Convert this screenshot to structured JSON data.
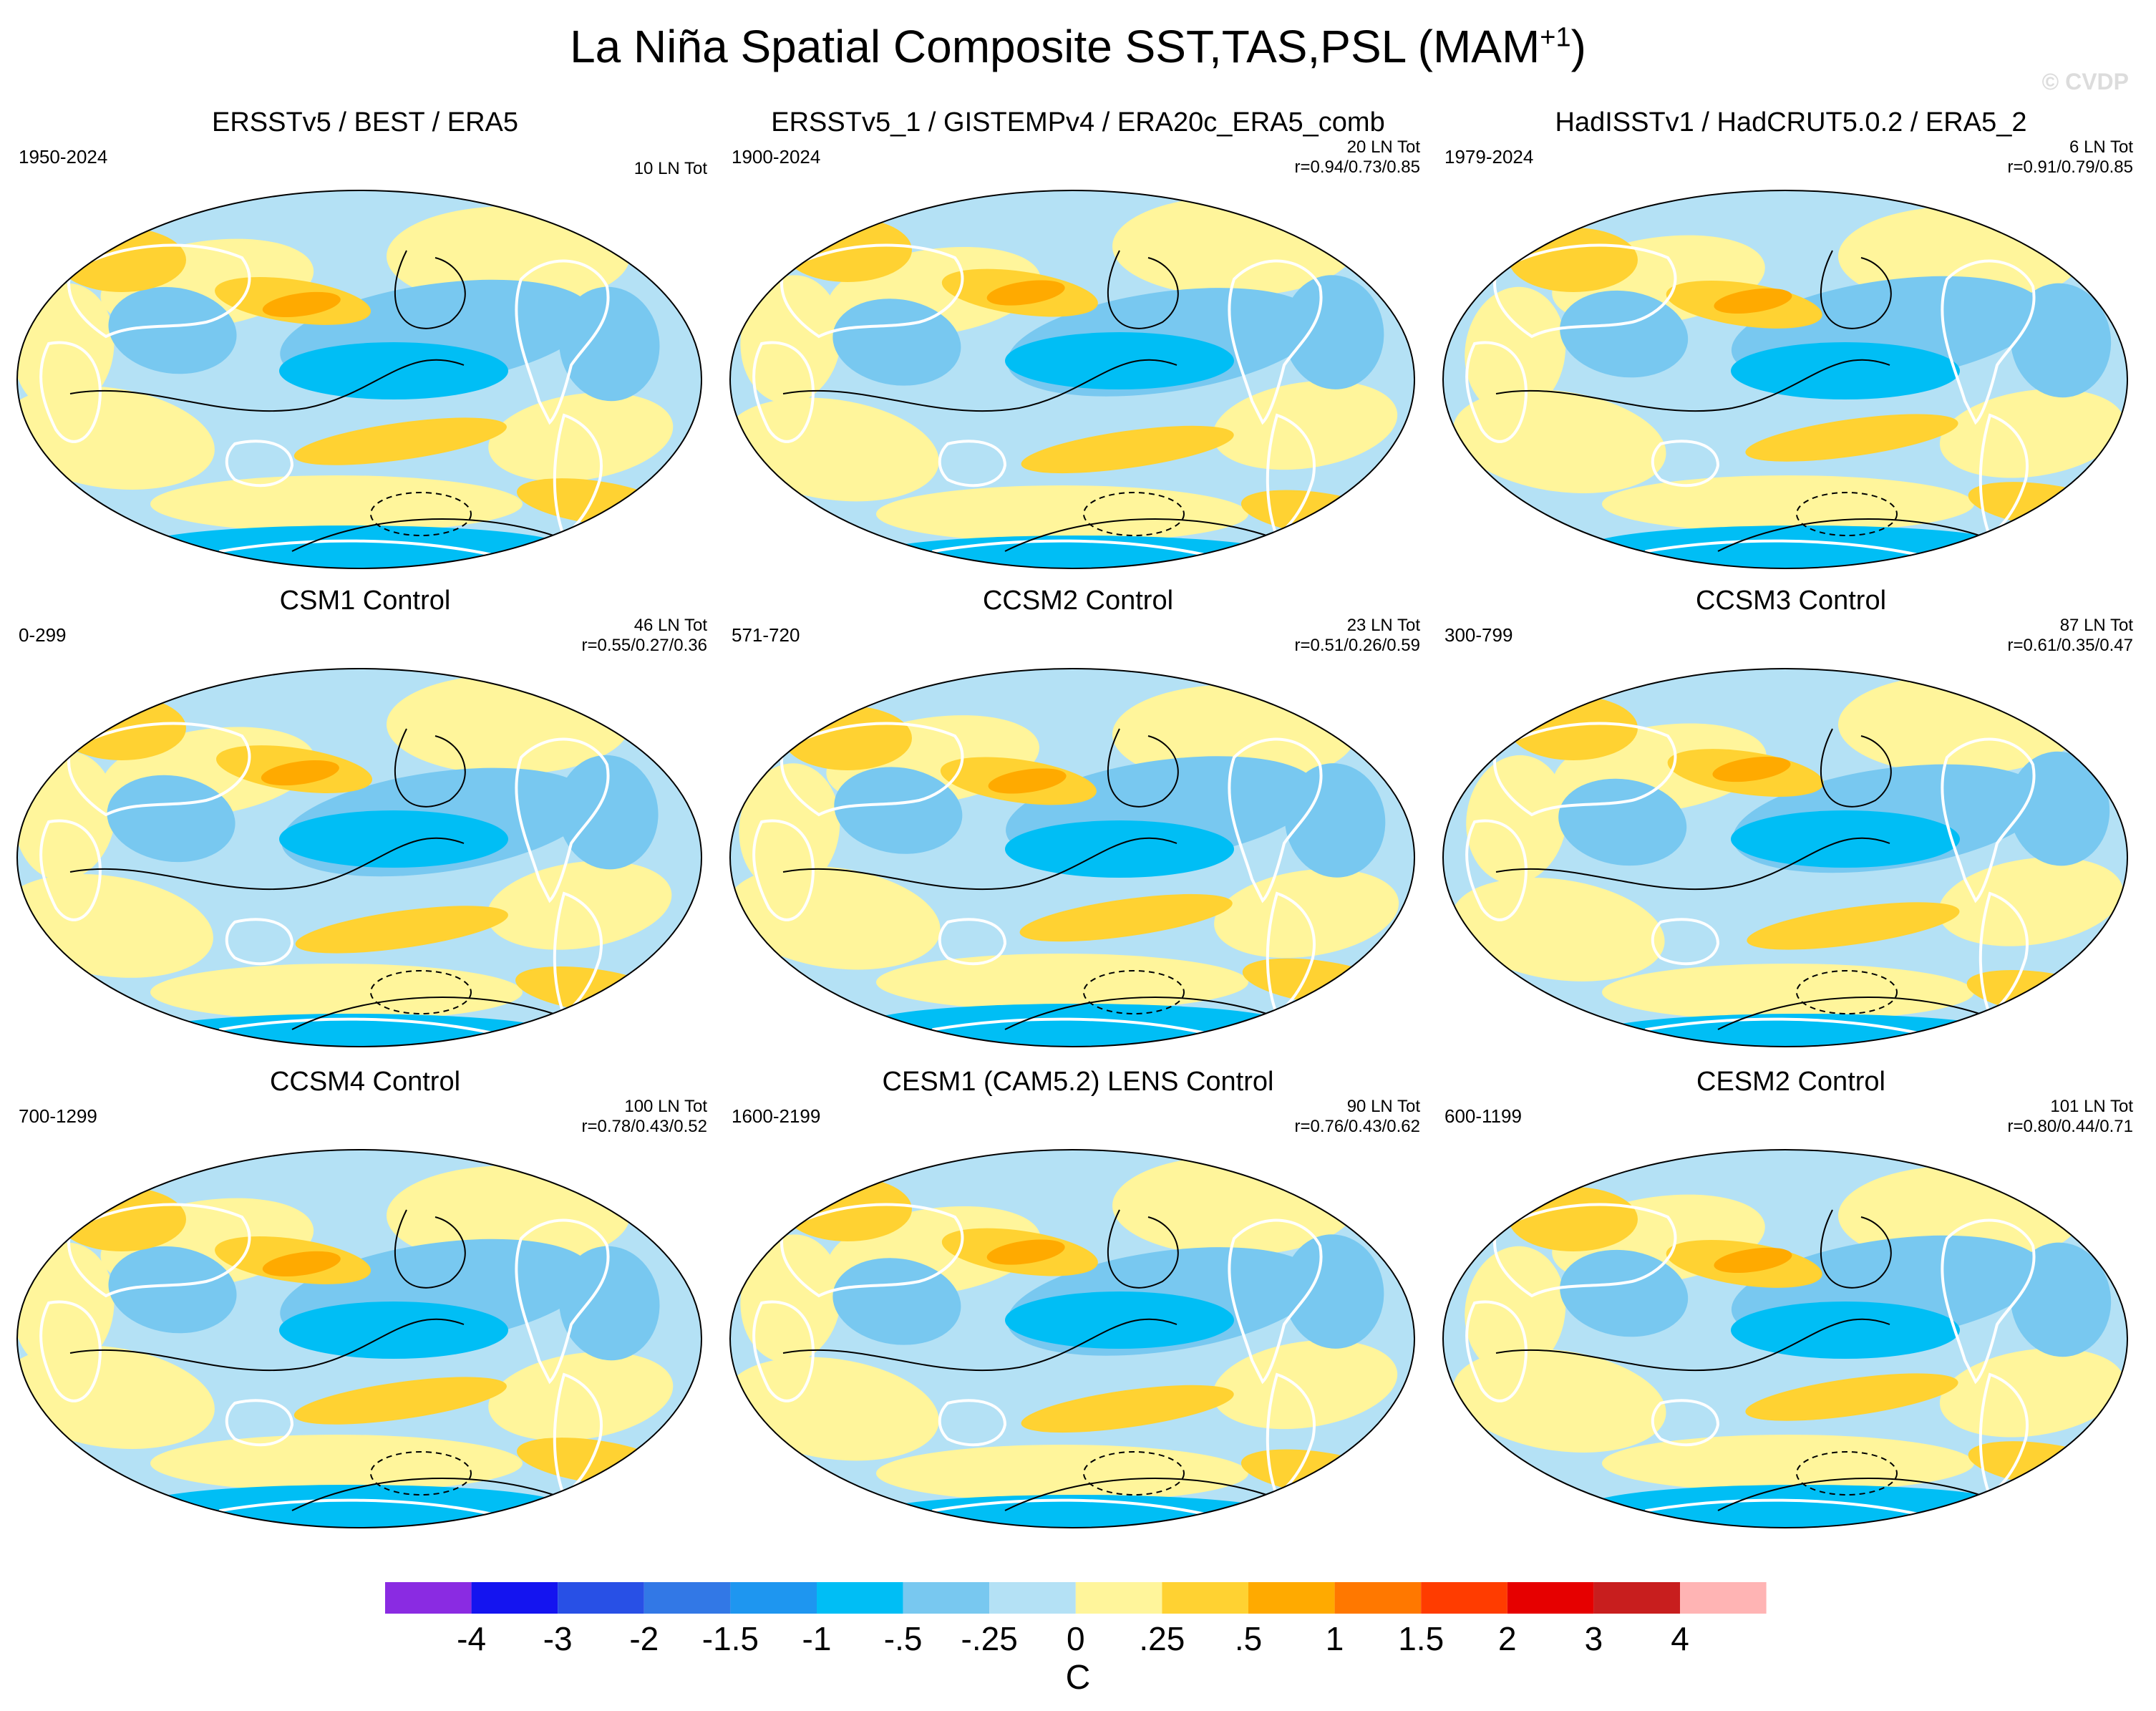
{
  "title_main": "La Niña Spatial Composite SST,TAS,PSL (MAM",
  "title_sup": "+1",
  "title_end": ")",
  "watermark": "© CVDP",
  "panels": [
    {
      "title": "ERSSTv5 / BEST / ERA5",
      "years": "1950-2024",
      "count": "10 LN Tot",
      "corr": ""
    },
    {
      "title": "ERSSTv5_1 / GISTEMPv4 / ERA20c_ERA5_comb",
      "years": "1900-2024",
      "count": "20 LN Tot",
      "corr": "r=0.94/0.73/0.85"
    },
    {
      "title": "HadISSTv1 / HadCRUT5.0.2 / ERA5_2",
      "years": "1979-2024",
      "count": "6 LN Tot",
      "corr": "r=0.91/0.79/0.85"
    },
    {
      "title": "CSM1 Control",
      "years": "0-299",
      "count": "46 LN Tot",
      "corr": "r=0.55/0.27/0.36"
    },
    {
      "title": "CCSM2 Control",
      "years": "571-720",
      "count": "23 LN Tot",
      "corr": "r=0.51/0.26/0.59"
    },
    {
      "title": "CCSM3 Control",
      "years": "300-799",
      "count": "87 LN Tot",
      "corr": "r=0.61/0.35/0.47"
    },
    {
      "title": "CCSM4 Control",
      "years": "700-1299",
      "count": "100 LN Tot",
      "corr": "r=0.78/0.43/0.52"
    },
    {
      "title": "CESM1 (CAM5.2) LENS Control",
      "years": "1600-2199",
      "count": "90 LN Tot",
      "corr": "r=0.76/0.43/0.62"
    },
    {
      "title": "CESM2 Control",
      "years": "600-1199",
      "count": "101 LN Tot",
      "corr": "r=0.80/0.44/0.71"
    }
  ],
  "colorbar": {
    "colors": [
      "#8a2be2",
      "#1414f0",
      "#2850e6",
      "#3278e6",
      "#1e96f0",
      "#00bef5",
      "#78c8f0",
      "#b4e1f5",
      "#fff59b",
      "#ffd232",
      "#ffaa00",
      "#ff7800",
      "#ff3c00",
      "#e60000",
      "#c81e1e",
      "#ffb4b4"
    ],
    "labels": [
      "-4",
      "-3",
      "-2",
      "-1.5",
      "-1",
      "-.5",
      "-.25",
      "0",
      ".25",
      ".5",
      "1",
      "1.5",
      "2",
      "3",
      "4"
    ],
    "units": "C"
  }
}
